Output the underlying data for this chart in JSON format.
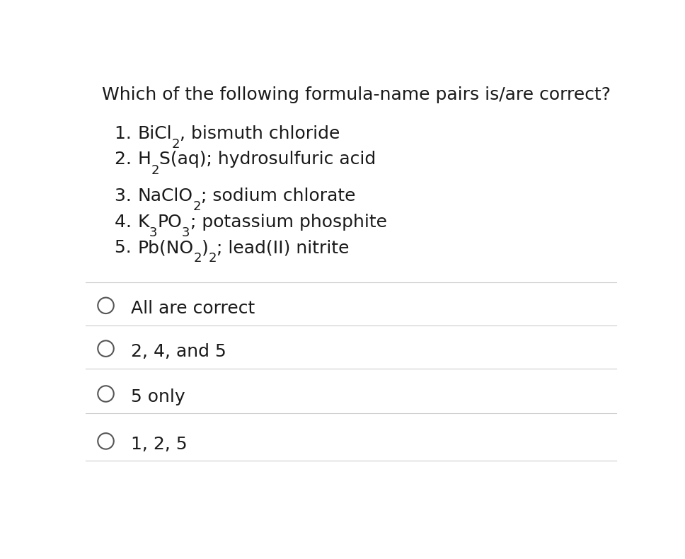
{
  "title": "Which of the following formula-name pairs is/are correct?",
  "choices": [
    "All are correct",
    "2, 4, and 5",
    "5 only",
    "1, 2, 5"
  ],
  "bg_color": "#ffffff",
  "text_color": "#1a1a1a",
  "line_color": "#cccccc",
  "title_fontsize": 18,
  "item_fontsize": 18,
  "choice_fontsize": 18,
  "circle_color": "#555555"
}
